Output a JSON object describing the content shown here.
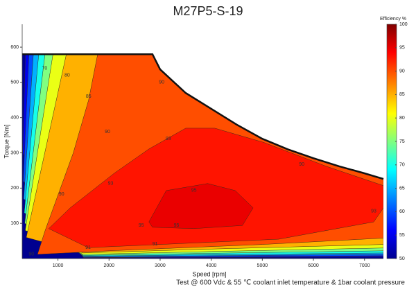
{
  "chart_data": {
    "type": "contour",
    "title": "M27P5-S-19",
    "xlabel": "Speed [rpm]",
    "ylabel": "Torque [Nm]",
    "colorbar_label": "Efficiency %",
    "footnote": "Test @ 600 Vdc & 55 ℃ coolant inlet temperature & 1bar coolant pressure",
    "xlim": [
      300,
      7370
    ],
    "ylim": [
      0,
      665
    ],
    "xticks": [
      1000,
      2000,
      3000,
      4000,
      5000,
      6000,
      7000
    ],
    "yticks": [
      100,
      200,
      300,
      400,
      500,
      600
    ],
    "clim": [
      50,
      100
    ],
    "cticks": [
      50,
      55,
      60,
      65,
      70,
      75,
      80,
      85,
      90,
      95,
      100
    ],
    "colormap": {
      "levels": [
        50,
        56,
        69,
        81,
        94,
        100
      ],
      "colors": [
        "#00008f",
        "#0000ff",
        "#00ffff",
        "#ffff00",
        "#ff0000",
        "#800000"
      ]
    },
    "envelope": {
      "x": [
        300,
        2850,
        3000,
        3500,
        4000,
        4500,
        5000,
        5500,
        6000,
        6500,
        7000,
        7370
      ],
      "y": [
        580,
        580,
        537,
        470,
        425,
        380,
        340,
        310,
        285,
        262,
        242,
        226
      ]
    },
    "contours": [
      {
        "level": 55,
        "x": [
          380,
          7370,
          7370,
          4000,
          1500,
          310
        ],
        "y": [
          670,
          670,
          5,
          3,
          2,
          300
        ]
      },
      {
        "level": 60,
        "x": [
          460,
          7370,
          7370,
          4000,
          1500,
          320
        ],
        "y": [
          670,
          670,
          8,
          5,
          3,
          220
        ]
      },
      {
        "level": 65,
        "x": [
          560,
          7370,
          7370,
          4000,
          1500,
          330
        ],
        "y": [
          670,
          670,
          12,
          8,
          5,
          170
        ]
      },
      {
        "level": 70,
        "x": [
          680,
          7370,
          7370,
          4000,
          1500,
          340
        ],
        "y": [
          670,
          670,
          16,
          11,
          7,
          130
        ]
      },
      {
        "level": 75,
        "x": [
          820,
          7370,
          7370,
          4000,
          1500,
          350
        ],
        "y": [
          670,
          670,
          22,
          15,
          9,
          100
        ]
      },
      {
        "level": 80,
        "x": [
          1000,
          7370,
          7370,
          4000,
          1500,
          360
        ],
        "y": [
          670,
          670,
          30,
          20,
          12,
          80
        ]
      },
      {
        "level": 85,
        "x": [
          1300,
          7370,
          7370,
          4000,
          1500,
          380
        ],
        "y": [
          670,
          670,
          40,
          27,
          16,
          60
        ]
      },
      {
        "level": 90,
        "x": [
          1900,
          7370,
          7370,
          5000,
          2000,
          600,
          750,
          1000,
          1300,
          1600
        ],
        "y": [
          670,
          670,
          58,
          40,
          22,
          12,
          80,
          180,
          300,
          450
        ]
      },
      {
        "level": 93,
        "x": [
          4070,
          5020,
          6250,
          7370,
          7370,
          7180,
          5320,
          1590,
          820,
          1240,
          2100,
          2780,
          3500
        ],
        "y": [
          370,
          330,
          262,
          207,
          144,
          104,
          55,
          31,
          85,
          144,
          242,
          311,
          370
        ]
      },
      {
        "level": 95,
        "x": [
          2780,
          3120,
          3930,
          4470,
          4820,
          4610,
          3660,
          2850
        ],
        "y": [
          104,
          193,
          213,
          193,
          144,
          94,
          85,
          89
        ]
      }
    ],
    "contour_labels": [
      {
        "value": 70,
        "x": 740,
        "y": 540
      },
      {
        "value": 80,
        "x": 1180,
        "y": 520
      },
      {
        "value": 85,
        "x": 1600,
        "y": 460
      },
      {
        "value": 90,
        "x": 3030,
        "y": 500
      },
      {
        "value": 90,
        "x": 1970,
        "y": 360
      },
      {
        "value": 90,
        "x": 5770,
        "y": 267
      },
      {
        "value": 90,
        "x": 1070,
        "y": 183
      },
      {
        "value": 93,
        "x": 3160,
        "y": 340
      },
      {
        "value": 93,
        "x": 2030,
        "y": 213
      },
      {
        "value": 93,
        "x": 7180,
        "y": 134
      },
      {
        "value": 95,
        "x": 3660,
        "y": 193
      },
      {
        "value": 95,
        "x": 2630,
        "y": 94
      },
      {
        "value": 95,
        "x": 3320,
        "y": 94
      },
      {
        "value": 91,
        "x": 1590,
        "y": 31
      },
      {
        "value": 91,
        "x": 2900,
        "y": 41
      },
      {
        "value": 90,
        "x": 480,
        "y": 12
      }
    ]
  }
}
